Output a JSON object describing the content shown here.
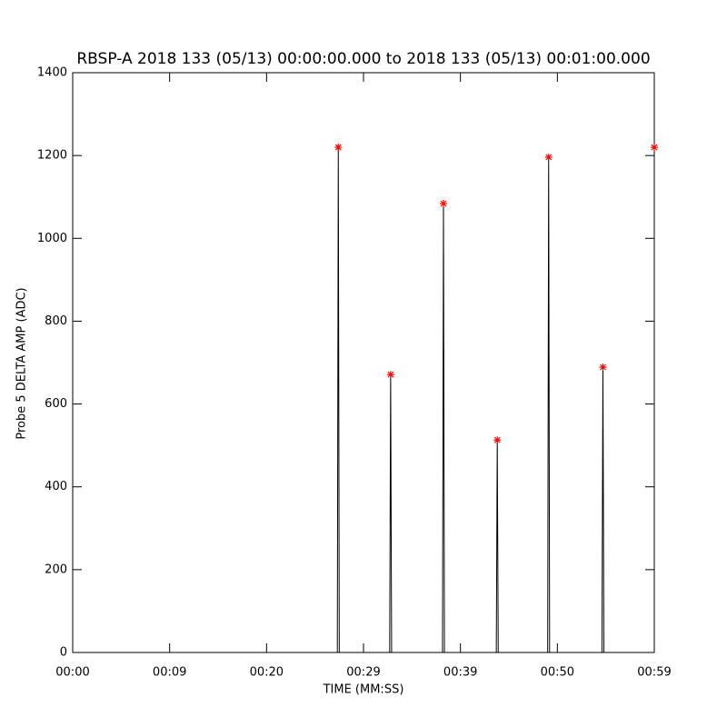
{
  "chart_data": {
    "type": "line",
    "title": "RBSP-A 2018 133 (05/13) 00:00:00.000 to 2018 133 (05/13) 00:01:00.000",
    "x_label": "TIME (MM:SS)",
    "y_label": "Probe 5 DELTA AMP (ADC)",
    "xlim": [
      0,
      60
    ],
    "ylim": [
      0,
      1400
    ],
    "xticks": [
      {
        "value": 0,
        "label": "00:00"
      },
      {
        "value": 10,
        "label": "00:09"
      },
      {
        "value": 20,
        "label": "00:20"
      },
      {
        "value": 30,
        "label": "00:29"
      },
      {
        "value": 40,
        "label": "00:39"
      },
      {
        "value": 50,
        "label": "00:50"
      },
      {
        "value": 60,
        "label": "00:59"
      }
    ],
    "yticks": [
      0,
      200,
      400,
      600,
      800,
      1000,
      1200,
      1400
    ],
    "series": [
      {
        "color": "#000000",
        "x": [
          0,
          27.3,
          27.4,
          27.5,
          32.7,
          32.8,
          32.9,
          38.15,
          38.25,
          38.35,
          43.7,
          43.8,
          43.9,
          49.0,
          49.1,
          49.2,
          54.6,
          54.7,
          54.8,
          60
        ],
        "values": [
          0,
          0,
          1220,
          0,
          0,
          671,
          0,
          0,
          1084,
          0,
          0,
          513,
          0,
          0,
          1196,
          0,
          0,
          689,
          0,
          0
        ]
      },
      {
        "color": "#ff0000",
        "marker": "star",
        "x": [
          27.4,
          32.8,
          38.25,
          43.8,
          49.1,
          54.7,
          60
        ],
        "values": [
          1220,
          671,
          1084,
          513,
          1196,
          689,
          1220
        ]
      }
    ]
  }
}
